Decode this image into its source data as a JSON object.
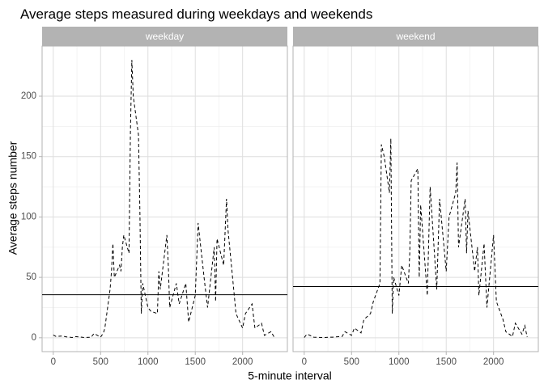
{
  "chart_data": {
    "type": "line",
    "title": "Average steps measured during weekdays and weekends",
    "xlabel": "5-minute interval",
    "ylabel": "Average steps number",
    "xlim": [
      -118,
      2473
    ],
    "xticks": [
      0,
      500,
      1000,
      1500,
      2000
    ],
    "ylim": [
      -11.5,
      241.5
    ],
    "yticks": [
      0,
      50,
      100,
      150,
      200
    ],
    "grid": true,
    "color": "#000000",
    "dashed": true,
    "series": [
      {
        "name": "weekday",
        "x": [
          0,
          30,
          100,
          130,
          200,
          230,
          300,
          330,
          400,
          430,
          500,
          530,
          545,
          600,
          615,
          630,
          645,
          700,
          715,
          730,
          745,
          800,
          815,
          830,
          845,
          900,
          915,
          930,
          945,
          1000,
          1030,
          1100,
          1115,
          1130,
          1200,
          1215,
          1230,
          1300,
          1330,
          1400,
          1430,
          1500,
          1530,
          1600,
          1630,
          1700,
          1715,
          1730,
          1800,
          1830,
          1845,
          1900,
          1930,
          2000,
          2030,
          2100,
          2130,
          2200,
          2230,
          2300,
          2330,
          2355
        ],
        "values": [
          2.3,
          1,
          1.5,
          0.8,
          0.2,
          1,
          0.5,
          0.2,
          0.4,
          3.5,
          0.5,
          4,
          8,
          40,
          55,
          78,
          50,
          60,
          55,
          75,
          85,
          70,
          170,
          230,
          200,
          168,
          105,
          20,
          45,
          25,
          22,
          20,
          55,
          40,
          85,
          60,
          25,
          45,
          28,
          45,
          13,
          35,
          95,
          45,
          25,
          75,
          30,
          82,
          60,
          115,
          90,
          45,
          20,
          8,
          20,
          28,
          8,
          12,
          2,
          5,
          1,
          0.5
        ],
        "mean": 35.6
      },
      {
        "name": "weekend",
        "x": [
          0,
          30,
          100,
          200,
          300,
          400,
          430,
          500,
          530,
          600,
          630,
          700,
          730,
          800,
          815,
          845,
          900,
          915,
          930,
          945,
          1000,
          1030,
          1100,
          1115,
          1130,
          1200,
          1215,
          1230,
          1300,
          1330,
          1400,
          1430,
          1500,
          1530,
          1600,
          1615,
          1630,
          1700,
          1715,
          1730,
          1800,
          1830,
          1845,
          1900,
          1930,
          2000,
          2030,
          2100,
          2130,
          2200,
          2230,
          2300,
          2330,
          2355
        ],
        "values": [
          0.2,
          3,
          0.5,
          0.2,
          0.5,
          1,
          5,
          2,
          8,
          4,
          15,
          20,
          30,
          45,
          160,
          150,
          120,
          165,
          20,
          50,
          35,
          60,
          45,
          70,
          130,
          140,
          50,
          110,
          35,
          125,
          40,
          115,
          55,
          100,
          120,
          145,
          75,
          115,
          70,
          105,
          55,
          75,
          35,
          78,
          25,
          85,
          30,
          15,
          5,
          1,
          12,
          3,
          10,
          0.5
        ],
        "mean": 42.4
      }
    ]
  }
}
